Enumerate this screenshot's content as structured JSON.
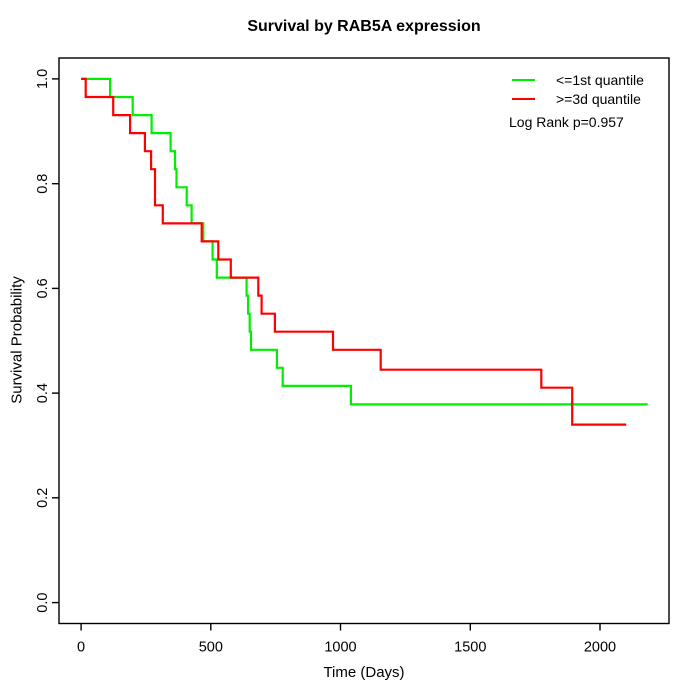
{
  "page": {
    "background_color": "#ffffff"
  },
  "chart_data": {
    "type": "line",
    "variant": "kaplan_meier_step",
    "title": "Survival by RAB5A expression",
    "xlabel": "Time (Days)",
    "ylabel": "Survival Probability",
    "annotation": "Log Rank p=0.957",
    "grid": false,
    "legend_position": "top-right-inside",
    "axis_color": "#000000",
    "xlim": [
      -85,
      2266
    ],
    "ylim": [
      -0.04,
      1.04
    ],
    "x_ticks": {
      "values": [
        0,
        500,
        1000,
        1500,
        2000
      ],
      "labels": [
        "0",
        "500",
        "1000",
        "1500",
        "2000"
      ]
    },
    "y_ticks": {
      "values": [
        0.0,
        0.2,
        0.4,
        0.6,
        0.8,
        1.0
      ],
      "labels": [
        "0.0",
        "0.2",
        "0.4",
        "0.6",
        "0.8",
        "1.0"
      ]
    },
    "series": [
      {
        "name": "<=1st quantile",
        "color": "#00ee00",
        "end_x": 2184,
        "points": [
          [
            0,
            1.0
          ],
          [
            112,
            0.9655
          ],
          [
            199,
            0.931
          ],
          [
            272,
            0.8966
          ],
          [
            345,
            0.862
          ],
          [
            362,
            0.8276
          ],
          [
            368,
            0.7931
          ],
          [
            407,
            0.7586
          ],
          [
            426,
            0.7241
          ],
          [
            471,
            0.6897
          ],
          [
            507,
            0.6552
          ],
          [
            523,
            0.6207
          ],
          [
            638,
            0.5862
          ],
          [
            644,
            0.5517
          ],
          [
            650,
            0.5172
          ],
          [
            655,
            0.4828
          ],
          [
            755,
            0.4483
          ],
          [
            777,
            0.4138
          ],
          [
            1040,
            0.3784
          ]
        ]
      },
      {
        "name": ">=3d quantile",
        "color": "#ff0000",
        "end_x": 2101,
        "points": [
          [
            0,
            1.0
          ],
          [
            18,
            0.9655
          ],
          [
            124,
            0.931
          ],
          [
            189,
            0.8966
          ],
          [
            246,
            0.862
          ],
          [
            270,
            0.8276
          ],
          [
            285,
            0.7586
          ],
          [
            315,
            0.7241
          ],
          [
            465,
            0.6897
          ],
          [
            529,
            0.6552
          ],
          [
            577,
            0.6207
          ],
          [
            683,
            0.5862
          ],
          [
            696,
            0.5517
          ],
          [
            747,
            0.5172
          ],
          [
            971,
            0.4828
          ],
          [
            1155,
            0.4448
          ],
          [
            1774,
            0.4103
          ],
          [
            1893,
            0.3399
          ]
        ]
      }
    ]
  }
}
